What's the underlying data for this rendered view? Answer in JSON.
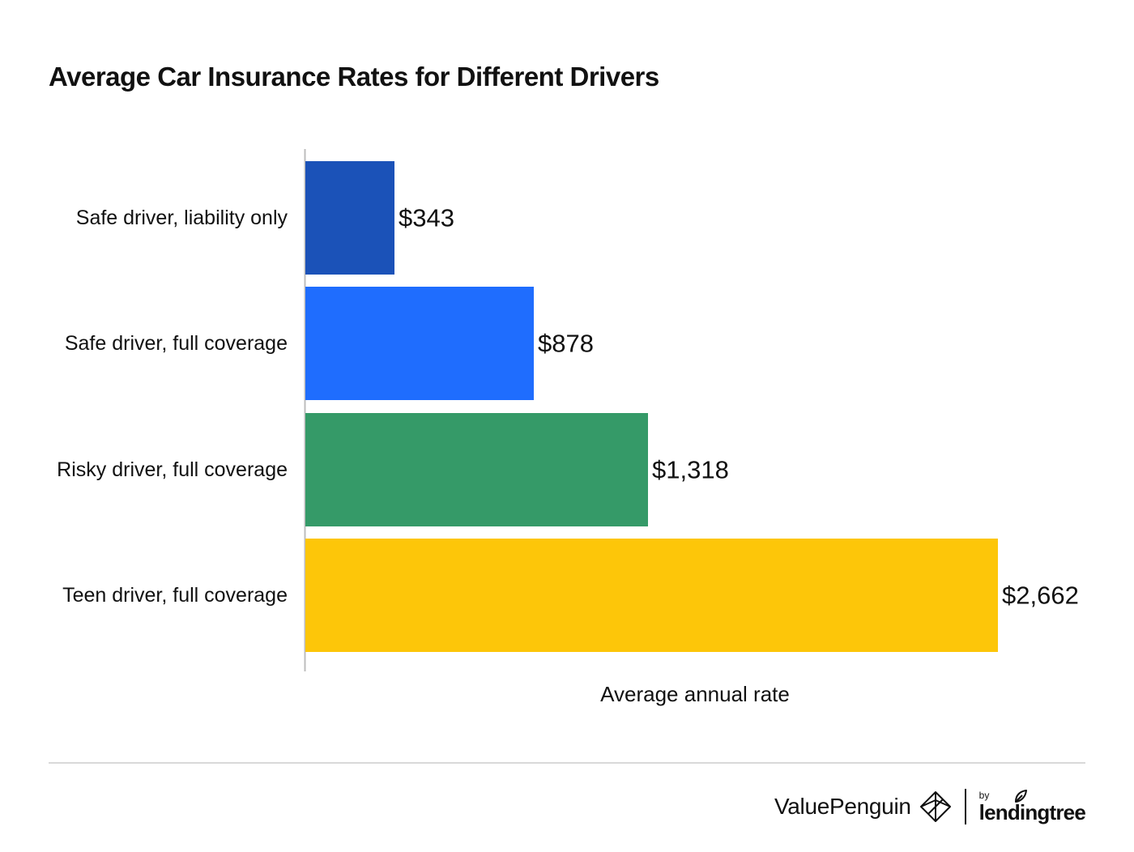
{
  "title": "Average Car Insurance Rates for Different Drivers",
  "chart_data": {
    "type": "bar",
    "orientation": "horizontal",
    "title": "Average Car Insurance Rates for Different Drivers",
    "categories": [
      "Safe driver, liability only",
      "Safe driver, full coverage",
      "Risky driver, full coverage",
      "Teen driver, full coverage"
    ],
    "values": [
      343,
      878,
      1318,
      2662
    ],
    "value_labels": [
      "$343",
      "$878",
      "$1,318",
      "$2,662"
    ],
    "colors": [
      "#1b52b8",
      "#1f6dfe",
      "#359a68",
      "#fdc609"
    ],
    "xlabel": "Average annual rate",
    "ylabel": "",
    "xlim": [
      0,
      2662
    ],
    "grid": false,
    "legend": "none"
  },
  "footer": {
    "brand": "ValuePenguin",
    "brand_icon": "valuepenguin-logo-icon",
    "partner_prefix": "by",
    "partner": "lendingtree",
    "partner_icon": "leaf-icon"
  }
}
